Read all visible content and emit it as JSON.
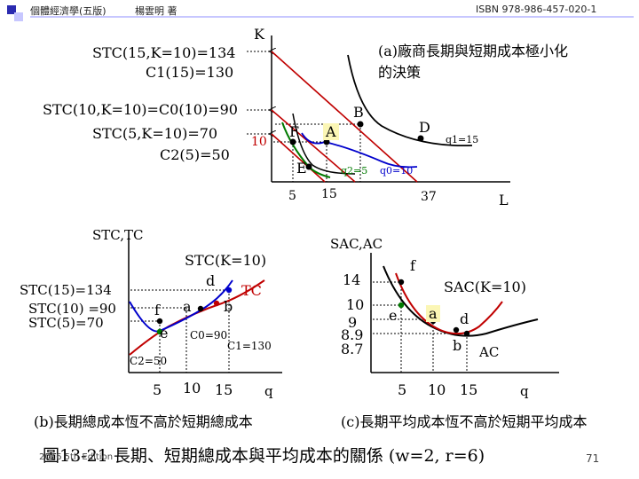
{
  "header": {
    "book_title": "個體經濟學(五版)",
    "author": "楊雲明 著",
    "isbn": "ISBN 978-986-457-020-1"
  },
  "panel_a": {
    "title_line1": "(a)廠商長期與短期成本極小化",
    "title_line2": "的決策",
    "axis_k": "K",
    "axis_l": "L",
    "stc15_label": "STC(15,K=10)=134",
    "c1_label": "C1(15)=130",
    "stc10_label": "STC(10,K=10)=C0(10)=90",
    "stc5_label": "STC(5,K=10)=70",
    "c2_label": "C2(5)=50",
    "k10_label": "10",
    "point_b": "B",
    "point_d": "D",
    "point_f": "F",
    "point_a": "A",
    "point_e": "E",
    "q2_label": "q2=5",
    "q0_label": "q0=10",
    "q1_label": "q1=15",
    "l_tick_5": "5",
    "l_tick_15": "15",
    "l_tick_37": "37"
  },
  "panel_b": {
    "axis_y": "STC,TC",
    "axis_x": "q",
    "stc_k10_label": "STC(K=10)",
    "tc_label": "TC",
    "stc15_label": "STC(15)=134",
    "stc10_label": "STC(10) =90",
    "stc5_label": "STC(5)=70",
    "c0_label": "C0=90",
    "c1_label": "C1=130",
    "c2_label": "C2=50",
    "point_d": "d",
    "point_a": "a",
    "point_b": "b",
    "point_f": "f",
    "point_e": "e",
    "tick_5": "5",
    "tick_10": "10",
    "tick_15": "15",
    "subtitle": "(b)長期總成本恆不高於短期總成本"
  },
  "panel_c": {
    "axis_y": "SAC,AC",
    "axis_x": "q",
    "sac_k10_label": "SAC(K=10)",
    "ac_label": "AC",
    "v14": "14",
    "v10": "10",
    "v9": "9",
    "v89": "8.9",
    "v87": "8.7",
    "point_f": "f",
    "point_e": "e",
    "point_a": "a",
    "point_d": "d",
    "point_b": "b",
    "tick_5": "5",
    "tick_10": "10",
    "tick_15": "15",
    "subtitle": "(c)長期平均成本恆不高於短期平均成本"
  },
  "caption": "圖13-21 長期、短期總成本與平均成本的關係 (w=2, r=6)",
  "footnote": "2016 5th Edition",
  "page_number": "71",
  "colors": {
    "header_blue": "#2b2bb0",
    "header_light": "#c7c7ff",
    "isoquant_green": "#007a00",
    "isocost_red": "#c00000",
    "curve_blue": "#0000cc",
    "curve_black": "#000000",
    "label_highlight": "#fbf6b5"
  }
}
